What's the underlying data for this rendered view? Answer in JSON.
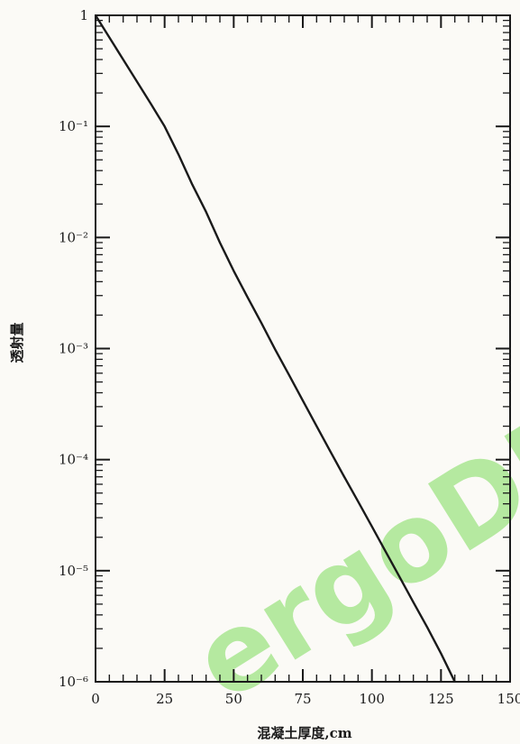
{
  "chart_data": {
    "type": "line",
    "xlabel": "混凝土厚度,cm",
    "ylabel": "透射量",
    "xlim": [
      0,
      150
    ],
    "ylim": [
      1e-06,
      1
    ],
    "yscale": "log",
    "x_ticks": [
      {
        "value": 0,
        "label": "0"
      },
      {
        "value": 25,
        "label": "25"
      },
      {
        "value": 50,
        "label": "50"
      },
      {
        "value": 75,
        "label": "75"
      },
      {
        "value": 100,
        "label": "100"
      },
      {
        "value": 125,
        "label": "125"
      },
      {
        "value": 150,
        "label": "150"
      }
    ],
    "y_ticks": [
      {
        "value": 1,
        "label": "1"
      },
      {
        "value": 0.1,
        "label": "10⁻¹"
      },
      {
        "value": 0.01,
        "label": "10⁻²"
      },
      {
        "value": 0.001,
        "label": "10⁻³"
      },
      {
        "value": 0.0001,
        "label": "10⁻⁴"
      },
      {
        "value": 1e-05,
        "label": "10⁻⁵"
      },
      {
        "value": 1e-06,
        "label": "10⁻⁶"
      }
    ],
    "series": [
      {
        "x": [
          0,
          10,
          20,
          25,
          30,
          35,
          40,
          45,
          50,
          55,
          60,
          65,
          70,
          75,
          80,
          85,
          90,
          95,
          100,
          105,
          110,
          115,
          120,
          125,
          130
        ],
        "y": [
          1,
          0.4,
          0.16,
          0.1,
          0.056,
          0.03,
          0.017,
          0.009,
          0.005,
          0.0029,
          0.0017,
          0.00098,
          0.00058,
          0.00034,
          0.0002,
          0.000118,
          7e-05,
          4.2e-05,
          2.5e-05,
          1.48e-05,
          8.8e-06,
          5.2e-06,
          3.1e-06,
          1.8e-06,
          1e-06
        ]
      }
    ],
    "grid": false,
    "line_color": "#1a1a1a"
  },
  "watermark": {
    "text": "ergoDI",
    "color": "#7ddc5a"
  }
}
